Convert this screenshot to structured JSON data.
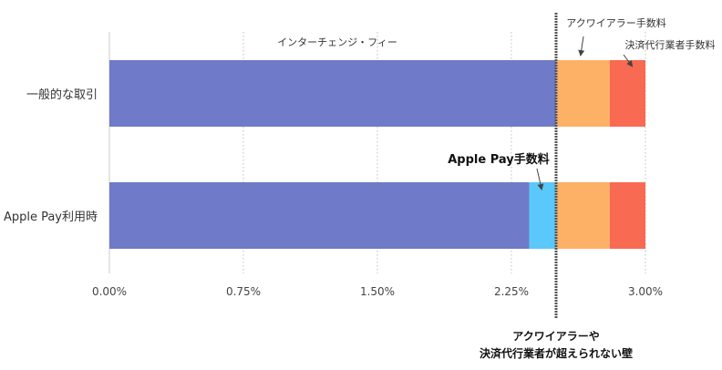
{
  "chart_data": {
    "type": "bar",
    "orientation": "horizontal",
    "stacked": true,
    "categories": [
      "一般的な取引",
      "Apple Pay利用時"
    ],
    "series": [
      {
        "key": "interchange",
        "color": "#6F7AC8",
        "values": [
          2.5,
          2.35
        ]
      },
      {
        "key": "applepay",
        "color": "#5AC8FA",
        "values": [
          0.0,
          0.15
        ]
      },
      {
        "key": "acquirer",
        "color": "#FDB166",
        "values": [
          0.3,
          0.3
        ]
      },
      {
        "key": "processor",
        "color": "#F86A52",
        "values": [
          0.2,
          0.2
        ]
      }
    ],
    "xlim": [
      0,
      3.0
    ],
    "xticks": [
      0,
      0.75,
      1.5,
      2.25,
      3.0
    ],
    "xtick_labels": [
      "0.00%",
      "0.75%",
      "1.50%",
      "2.25%",
      "3.00%"
    ],
    "grid": "vertical-dotted",
    "wall_at": 2.5,
    "annotations": {
      "interchange": "インターチェンジ・フィー",
      "acquirer": "アクワイアラー手数料",
      "processor": "決済代行業者手数料",
      "applepay": "Apple Pay手数料",
      "wall_line1": "アクワイアラーや",
      "wall_line2": "決済代行業者が超えられない壁"
    }
  }
}
